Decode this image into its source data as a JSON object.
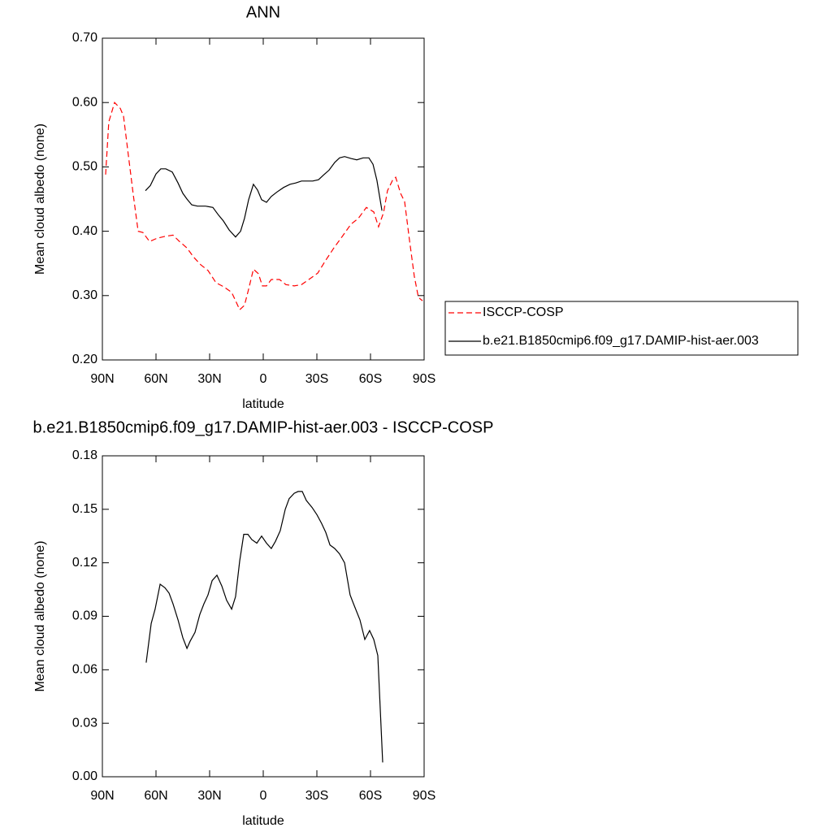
{
  "chart_data": [
    {
      "type": "line",
      "title": "ANN",
      "xlabel": "latitude",
      "ylabel": "Mean cloud albedo (none)",
      "xlim": [
        90,
        -90
      ],
      "xticks": [
        {
          "value": 90,
          "label": "90N"
        },
        {
          "value": 60,
          "label": "60N"
        },
        {
          "value": 30,
          "label": "30N"
        },
        0,
        {
          "value": -30,
          "label": "30S"
        },
        {
          "value": -60,
          "label": "60S"
        },
        {
          "value": -90,
          "label": "90S"
        }
      ],
      "ylim": [
        0.2,
        0.7
      ],
      "yticks": [
        {
          "value": 0.2,
          "label": "0.20"
        },
        {
          "value": 0.3,
          "label": "0.30"
        },
        {
          "value": 0.4,
          "label": "0.40"
        },
        {
          "value": 0.5,
          "label": "0.50"
        },
        {
          "value": 0.6,
          "label": "0.60"
        },
        {
          "value": 0.7,
          "label": "0.70"
        }
      ],
      "legend": "right",
      "series": [
        {
          "name": "ISCCP-COSP",
          "color": "#ff0000",
          "linestyle": "dashed",
          "x": [
            88.2,
            86.4,
            83.2,
            80,
            78.2,
            75.5,
            72.7,
            70,
            67.3,
            63.6,
            59.5,
            55,
            50.5,
            46.8,
            42.7,
            39,
            35,
            30.9,
            26.4,
            22.3,
            17.7,
            15.5,
            13.2,
            10.5,
            8.2,
            5.5,
            2.7,
            0.5,
            -1.8,
            -4.5,
            -9.1,
            -12.7,
            -17.3,
            -21.4,
            -25.5,
            -30.5,
            -35,
            -39.5,
            -44.5,
            -49.1,
            -53.2,
            -57.7,
            -61.8,
            -64.5,
            -67.3,
            -69.5,
            -72.3,
            -74.1,
            -76.8,
            -79.1,
            -81.8,
            -84.5,
            -86.8,
            -89.1
          ],
          "values": [
            0.488,
            0.57,
            0.6,
            0.591,
            0.579,
            0.519,
            0.456,
            0.4,
            0.398,
            0.384,
            0.389,
            0.392,
            0.394,
            0.384,
            0.374,
            0.36,
            0.348,
            0.339,
            0.32,
            0.314,
            0.305,
            0.292,
            0.278,
            0.285,
            0.31,
            0.341,
            0.334,
            0.315,
            0.315,
            0.325,
            0.325,
            0.317,
            0.315,
            0.317,
            0.325,
            0.335,
            0.355,
            0.374,
            0.393,
            0.411,
            0.42,
            0.437,
            0.43,
            0.407,
            0.429,
            0.463,
            0.479,
            0.484,
            0.459,
            0.446,
            0.386,
            0.33,
            0.297,
            0.292
          ]
        },
        {
          "name": "b.e21.B1850cmip6.f09_g17.DAMIP-hist-aer.003",
          "color": "#000000",
          "linestyle": "solid",
          "x": [
            65.9,
            63.2,
            60,
            57.3,
            54.5,
            50.9,
            47.7,
            45,
            42.7,
            40,
            36.8,
            32.3,
            28.2,
            25,
            22.3,
            19.1,
            15.5,
            12.7,
            10.5,
            8.2,
            5.5,
            3.2,
            0.9,
            -1.8,
            -4.5,
            -7.7,
            -11.4,
            -15,
            -18.2,
            -21.4,
            -27.7,
            -30.9,
            -33.6,
            -36.8,
            -40,
            -42.7,
            -45.5,
            -49.1,
            -52.3,
            -55.9,
            -59.1,
            -61.4,
            -63.6,
            -66.4
          ],
          "values": [
            0.463,
            0.471,
            0.489,
            0.497,
            0.497,
            0.492,
            0.475,
            0.459,
            0.45,
            0.441,
            0.439,
            0.439,
            0.437,
            0.425,
            0.416,
            0.402,
            0.391,
            0.4,
            0.42,
            0.449,
            0.473,
            0.464,
            0.449,
            0.445,
            0.454,
            0.461,
            0.468,
            0.473,
            0.475,
            0.478,
            0.478,
            0.48,
            0.487,
            0.495,
            0.507,
            0.514,
            0.516,
            0.513,
            0.511,
            0.514,
            0.514,
            0.504,
            0.479,
            0.432
          ]
        }
      ]
    },
    {
      "type": "line",
      "title": "b.e21.B1850cmip6.f09_g17.DAMIP-hist-aer.003 - ISCCP-COSP",
      "xlabel": "latitude",
      "ylabel": "Mean cloud albedo (none)",
      "xlim": [
        90,
        -90
      ],
      "xticks": [
        {
          "value": 90,
          "label": "90N"
        },
        {
          "value": 60,
          "label": "60N"
        },
        {
          "value": 30,
          "label": "30N"
        },
        0,
        {
          "value": -30,
          "label": "30S"
        },
        {
          "value": -60,
          "label": "60S"
        },
        {
          "value": -90,
          "label": "90S"
        }
      ],
      "ylim": [
        0,
        0.18
      ],
      "yticks": [
        {
          "value": 0,
          "label": "0.00"
        },
        {
          "value": 0.03,
          "label": "0.03"
        },
        {
          "value": 0.06,
          "label": "0.06"
        },
        {
          "value": 0.09,
          "label": "0.09"
        },
        {
          "value": 0.12,
          "label": "0.12"
        },
        {
          "value": 0.15,
          "label": "0.15"
        },
        {
          "value": 0.18,
          "label": "0.18"
        }
      ],
      "series": [
        {
          "color": "#000000",
          "linestyle": "solid",
          "x": [
            65.5,
            62.7,
            60.5,
            57.7,
            55,
            52.7,
            50.5,
            47.7,
            45,
            42.7,
            40.9,
            38.2,
            35.5,
            33.2,
            30.9,
            28.6,
            25.9,
            23.2,
            20.5,
            17.7,
            15.5,
            13.2,
            10.9,
            8.6,
            6.4,
            3.6,
            0.9,
            -1.8,
            -4.5,
            -6.8,
            -9.5,
            -12.3,
            -14.5,
            -17.3,
            -19.5,
            -21.8,
            -24.1,
            -27.3,
            -30,
            -32.7,
            -35,
            -37.3,
            -40,
            -42.7,
            -45.5,
            -48.6,
            -50.5,
            -54.1,
            -56.8,
            -59.5,
            -61.8,
            -64.1,
            -66.8
          ],
          "values": [
            0.064,
            0.086,
            0.094,
            0.108,
            0.106,
            0.103,
            0.097,
            0.088,
            0.078,
            0.072,
            0.076,
            0.081,
            0.091,
            0.097,
            0.102,
            0.11,
            0.113,
            0.107,
            0.099,
            0.094,
            0.101,
            0.121,
            0.136,
            0.136,
            0.133,
            0.131,
            0.135,
            0.131,
            0.128,
            0.132,
            0.138,
            0.15,
            0.156,
            0.159,
            0.16,
            0.16,
            0.155,
            0.151,
            0.147,
            0.142,
            0.137,
            0.13,
            0.128,
            0.125,
            0.12,
            0.102,
            0.097,
            0.088,
            0.077,
            0.082,
            0.077,
            0.068,
            0.008
          ]
        }
      ]
    }
  ]
}
